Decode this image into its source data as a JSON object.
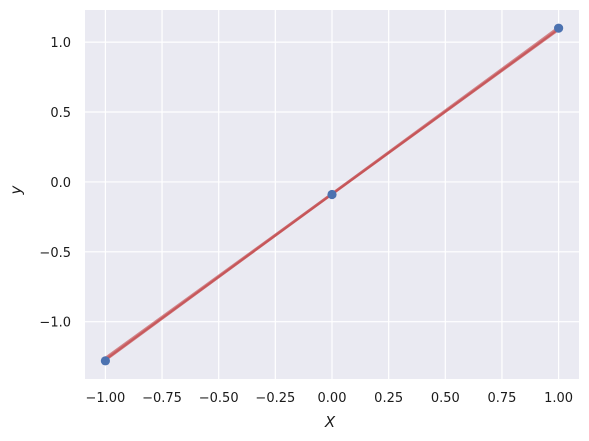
{
  "chart_data": {
    "type": "scatter",
    "title": "",
    "xlabel": "X",
    "ylabel": "y",
    "xlim": [
      -1.09,
      1.09
    ],
    "ylim": [
      -1.41,
      1.23
    ],
    "grid": true,
    "background": "#eaeaf2",
    "grid_color": "#ffffff",
    "x_ticks": [
      {
        "value": -1.0,
        "label": "−1.00"
      },
      {
        "value": -0.75,
        "label": "−0.75"
      },
      {
        "value": -0.5,
        "label": "−0.50"
      },
      {
        "value": -0.25,
        "label": "−0.25"
      },
      {
        "value": 0.0,
        "label": "0.00"
      },
      {
        "value": 0.25,
        "label": "0.25"
      },
      {
        "value": 0.5,
        "label": "0.50"
      },
      {
        "value": 0.75,
        "label": "0.75"
      },
      {
        "value": 1.0,
        "label": "1.00"
      }
    ],
    "y_ticks": [
      {
        "value": -1.0,
        "label": "−1.0"
      },
      {
        "value": -0.5,
        "label": "−0.5"
      },
      {
        "value": 0.0,
        "label": "0.0"
      },
      {
        "value": 0.5,
        "label": "0.5"
      },
      {
        "value": 1.0,
        "label": "1.0"
      }
    ],
    "points": {
      "color": "#4c72b0",
      "x": [
        -1.0,
        0.0,
        1.0
      ],
      "y": [
        -1.28,
        -0.09,
        1.1
      ]
    },
    "fit_lines": {
      "color": "#c44e52",
      "opacity": 0.65,
      "lines": [
        {
          "x": [
            -1.0,
            1.0
          ],
          "y": [
            -1.28,
            1.1
          ]
        },
        {
          "x": [
            -1.0,
            1.0
          ],
          "y": [
            -1.265,
            1.085
          ]
        },
        {
          "x": [
            -1.0,
            1.0
          ],
          "y": [
            -1.27,
            1.11
          ]
        },
        {
          "x": [
            -1.0,
            1.0
          ],
          "y": [
            -1.255,
            1.095
          ]
        },
        {
          "x": [
            -1.0,
            1.0
          ],
          "y": [
            -1.275,
            1.09
          ]
        }
      ]
    }
  }
}
